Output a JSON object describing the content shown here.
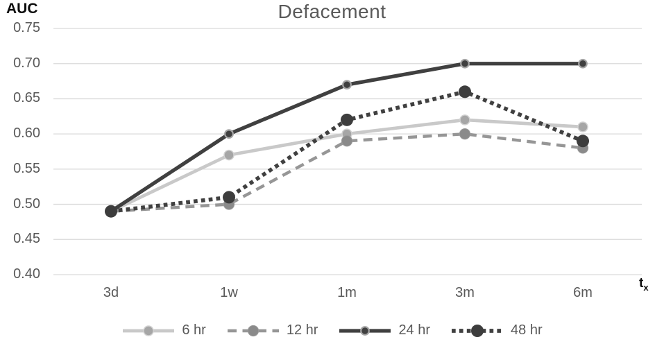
{
  "chart_data": {
    "type": "line",
    "title": "Defacement",
    "ylabel": "AUC",
    "xlabel": "t",
    "xlabel_sub": "x",
    "categories": [
      "3d",
      "1w",
      "1m",
      "3m",
      "6m"
    ],
    "series": [
      {
        "name": "6 hr",
        "values": [
          0.49,
          0.57,
          0.6,
          0.62,
          0.61
        ],
        "color": "#c9c9c9",
        "style": "solid",
        "width": 4.7,
        "marker_color": "#a6a6a6",
        "marker_radius": 7,
        "marker_ring": "#d2d2d2",
        "marker_ring_width": 1.5
      },
      {
        "name": "12 hr",
        "values": [
          0.49,
          0.5,
          0.59,
          0.6,
          0.58
        ],
        "color": "#969696",
        "style": "dashed",
        "width": 4.4,
        "marker_color": "#8a8a8a",
        "marker_radius": 7.6,
        "marker_ring": "#9b9b9b",
        "marker_ring_width": 1
      },
      {
        "name": "24 hr",
        "values": [
          0.49,
          0.6,
          0.67,
          0.7,
          0.7
        ],
        "color": "#404040",
        "style": "solid",
        "width": 5.3,
        "marker_color": "#404040",
        "marker_radius": 5.8,
        "marker_ring": "#a6a6a6",
        "marker_ring_width": 2.2
      },
      {
        "name": "48 hr",
        "values": [
          0.49,
          0.51,
          0.62,
          0.66,
          0.59
        ],
        "color": "#404040",
        "style": "dotted",
        "width": 5.7,
        "marker_color": "#3d3d3d",
        "marker_radius": 9,
        "marker_ring": "none",
        "marker_ring_width": 0
      }
    ],
    "ylim": [
      0.4,
      0.75
    ],
    "ytick_step": 0.05,
    "grid": true,
    "legend_position": "bottom",
    "colors": {
      "grid": "#d9d9d9",
      "tick_text": "#595959",
      "title_text": "#595959",
      "axis_title_text": "#0d0d0d",
      "background": "#ffffff"
    }
  }
}
